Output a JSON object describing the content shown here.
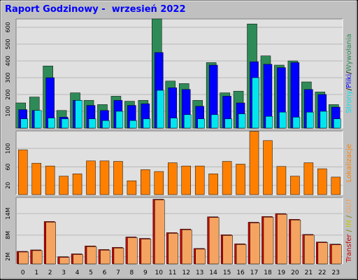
{
  "title": "Raport Godzinowy -  wrzesień 2022",
  "colors": {
    "page_bg": "#ffffff",
    "frame_bg": "#c0c0c0",
    "plot_bg": "#e0e0e0",
    "title": "#0000ff",
    "pages": "#2e8b57",
    "files": "#0000ff",
    "hits": "#00e5ee",
    "visits": "#ff8000",
    "in": "#cc0000",
    "out": "#f4a460"
  },
  "chart_data": [
    {
      "type": "bar",
      "categories": [
        "0",
        "1",
        "2",
        "3",
        "4",
        "5",
        "6",
        "7",
        "8",
        "9",
        "10",
        "11",
        "12",
        "13",
        "14",
        "15",
        "16",
        "17",
        "18",
        "19",
        "20",
        "21",
        "22",
        "23"
      ],
      "ylim": [
        0,
        650
      ],
      "yticks": [
        "100",
        "200",
        "300",
        "400",
        "500",
        "600"
      ],
      "grid": true,
      "right_label": [
        "Strony",
        "/",
        "Pliki",
        "/",
        "Wywołania"
      ],
      "series": [
        {
          "name": "Wywołania",
          "values": [
            150,
            185,
            370,
            105,
            210,
            165,
            140,
            190,
            160,
            165,
            650,
            280,
            265,
            165,
            390,
            210,
            220,
            620,
            430,
            375,
            400,
            275,
            215,
            140
          ]
        },
        {
          "name": "Pliki",
          "values": [
            110,
            105,
            300,
            65,
            165,
            135,
            105,
            165,
            135,
            145,
            450,
            240,
            230,
            130,
            375,
            190,
            150,
            395,
            380,
            360,
            390,
            230,
            200,
            125
          ]
        },
        {
          "name": "Strony",
          "values": [
            55,
            105,
            60,
            55,
            165,
            55,
            45,
            100,
            45,
            55,
            225,
            60,
            80,
            55,
            80,
            55,
            85,
            300,
            70,
            95,
            65,
            95,
            100,
            55
          ]
        }
      ]
    },
    {
      "type": "bar",
      "categories": [
        "0",
        "1",
        "2",
        "3",
        "4",
        "5",
        "6",
        "7",
        "8",
        "9",
        "10",
        "11",
        "12",
        "13",
        "14",
        "15",
        "16",
        "17",
        "18",
        "19",
        "20",
        "21",
        "22",
        "23"
      ],
      "ylim": [
        0,
        138
      ],
      "yticks": [
        "20",
        "60",
        "100"
      ],
      "grid": true,
      "right_label": [
        "Lokalizacje"
      ],
      "series": [
        {
          "name": "Lokalizacje",
          "values": [
            97,
            68,
            62,
            40,
            45,
            73,
            73,
            72,
            30,
            54,
            50,
            69,
            62,
            62,
            45,
            72,
            66,
            137,
            117,
            61,
            40,
            69,
            56,
            38
          ]
        }
      ]
    },
    {
      "type": "bar",
      "categories": [
        "0",
        "1",
        "2",
        "3",
        "4",
        "5",
        "6",
        "7",
        "8",
        "9",
        "10",
        "11",
        "12",
        "13",
        "14",
        "15",
        "16",
        "17",
        "18",
        "19",
        "20",
        "21",
        "22",
        "23"
      ],
      "ylim": [
        0,
        18.5
      ],
      "yticks": [
        "2M",
        "8M",
        "14M"
      ],
      "grid": true,
      "right_label": [
        "Transfer",
        " / ",
        "IN",
        " / ",
        "OUT"
      ],
      "series": [
        {
          "name": "IN",
          "values": [
            3.5,
            3.9,
            11.8,
            2.0,
            2.8,
            5.0,
            4.0,
            4.6,
            7.5,
            7.1,
            18.0,
            8.7,
            9.7,
            4.3,
            13.1,
            8.1,
            5.6,
            11.6,
            13.2,
            14.0,
            12.4,
            8.2,
            6.1,
            5.5
          ]
        },
        {
          "name": "OUT",
          "values": [
            3.5,
            3.9,
            11.8,
            2.0,
            2.8,
            5.0,
            4.0,
            4.6,
            7.5,
            7.1,
            18.0,
            8.7,
            9.7,
            4.3,
            13.1,
            8.1,
            5.6,
            11.6,
            13.2,
            14.0,
            12.4,
            8.2,
            6.1,
            5.5
          ]
        }
      ]
    }
  ]
}
